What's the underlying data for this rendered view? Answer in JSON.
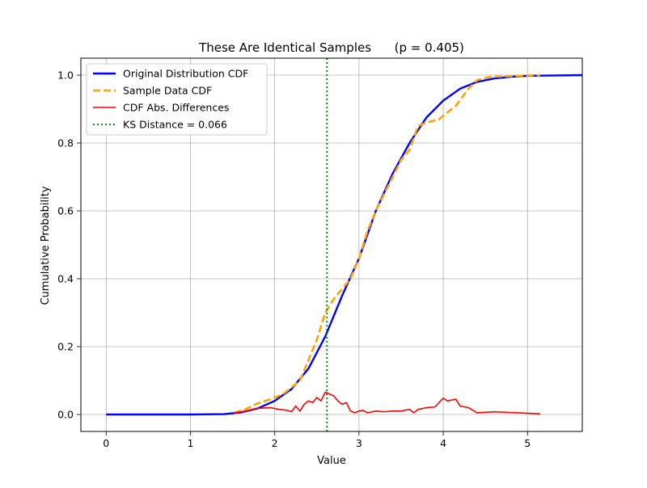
{
  "chart_data": {
    "type": "line",
    "title": "These Are Identical Samples      (p = 0.405)",
    "xlabel": "Value",
    "ylabel": "Cumulative Probability",
    "xlim": [
      -0.3,
      5.65
    ],
    "ylim": [
      -0.05,
      1.05
    ],
    "grid": true,
    "legend_position": "top-left",
    "x_ticks": [
      0,
      1,
      2,
      3,
      4,
      5
    ],
    "x_tick_labels": [
      "0",
      "1",
      "2",
      "3",
      "4",
      "5"
    ],
    "y_ticks": [
      0.0,
      0.2,
      0.4,
      0.6,
      0.8,
      1.0
    ],
    "y_tick_labels": [
      "0.0",
      "0.2",
      "0.4",
      "0.6",
      "0.8",
      "1.0"
    ],
    "series": [
      {
        "name": "Original Distribution CDF",
        "style": "solid",
        "color": "#0000ff",
        "points": [
          [
            0,
            0
          ],
          [
            0.5,
            0
          ],
          [
            1.0,
            0
          ],
          [
            1.4,
            0.001
          ],
          [
            1.6,
            0.006
          ],
          [
            1.8,
            0.018
          ],
          [
            2.0,
            0.04
          ],
          [
            2.2,
            0.075
          ],
          [
            2.4,
            0.135
          ],
          [
            2.6,
            0.23
          ],
          [
            2.8,
            0.35
          ],
          [
            3.0,
            0.46
          ],
          [
            3.2,
            0.6
          ],
          [
            3.4,
            0.71
          ],
          [
            3.6,
            0.8
          ],
          [
            3.8,
            0.875
          ],
          [
            4.0,
            0.925
          ],
          [
            4.2,
            0.96
          ],
          [
            4.4,
            0.98
          ],
          [
            4.6,
            0.99
          ],
          [
            4.8,
            0.995
          ],
          [
            5.0,
            0.998
          ],
          [
            5.3,
            0.999
          ],
          [
            5.65,
            1.0
          ]
        ]
      },
      {
        "name": "Sample Data CDF",
        "style": "dashed",
        "color": "#ffa500",
        "points": [
          [
            1.52,
            0.005
          ],
          [
            1.65,
            0.015
          ],
          [
            1.8,
            0.033
          ],
          [
            1.95,
            0.045
          ],
          [
            2.1,
            0.06
          ],
          [
            2.2,
            0.08
          ],
          [
            2.3,
            0.1
          ],
          [
            2.4,
            0.16
          ],
          [
            2.5,
            0.22
          ],
          [
            2.6,
            0.3
          ],
          [
            2.7,
            0.34
          ],
          [
            2.8,
            0.37
          ],
          [
            2.9,
            0.4
          ],
          [
            3.0,
            0.46
          ],
          [
            3.1,
            0.54
          ],
          [
            3.2,
            0.6
          ],
          [
            3.3,
            0.65
          ],
          [
            3.4,
            0.7
          ],
          [
            3.5,
            0.75
          ],
          [
            3.6,
            0.78
          ],
          [
            3.7,
            0.85
          ],
          [
            3.8,
            0.86
          ],
          [
            3.95,
            0.87
          ],
          [
            4.05,
            0.89
          ],
          [
            4.15,
            0.91
          ],
          [
            4.3,
            0.96
          ],
          [
            4.4,
            0.985
          ],
          [
            4.55,
            0.995
          ],
          [
            4.8,
            0.997
          ],
          [
            5.15,
            1.0
          ]
        ]
      },
      {
        "name": "CDF Abs. Differences",
        "style": "solid",
        "color": "#ff0000",
        "points": [
          [
            1.52,
            0.005
          ],
          [
            1.65,
            0.01
          ],
          [
            1.8,
            0.018
          ],
          [
            1.95,
            0.02
          ],
          [
            2.05,
            0.015
          ],
          [
            2.15,
            0.012
          ],
          [
            2.2,
            0.008
          ],
          [
            2.25,
            0.025
          ],
          [
            2.3,
            0.01
          ],
          [
            2.35,
            0.03
          ],
          [
            2.4,
            0.04
          ],
          [
            2.45,
            0.035
          ],
          [
            2.5,
            0.05
          ],
          [
            2.55,
            0.04
          ],
          [
            2.6,
            0.066
          ],
          [
            2.65,
            0.06
          ],
          [
            2.7,
            0.055
          ],
          [
            2.75,
            0.04
          ],
          [
            2.8,
            0.03
          ],
          [
            2.85,
            0.035
          ],
          [
            2.9,
            0.01
          ],
          [
            2.95,
            0.005
          ],
          [
            3.0,
            0.01
          ],
          [
            3.05,
            0.012
          ],
          [
            3.1,
            0.005
          ],
          [
            3.2,
            0.01
          ],
          [
            3.3,
            0.008
          ],
          [
            3.4,
            0.01
          ],
          [
            3.5,
            0.01
          ],
          [
            3.6,
            0.015
          ],
          [
            3.65,
            0.005
          ],
          [
            3.7,
            0.015
          ],
          [
            3.8,
            0.02
          ],
          [
            3.9,
            0.022
          ],
          [
            4.0,
            0.048
          ],
          [
            4.05,
            0.04
          ],
          [
            4.15,
            0.045
          ],
          [
            4.2,
            0.025
          ],
          [
            4.3,
            0.02
          ],
          [
            4.4,
            0.005
          ],
          [
            4.6,
            0.008
          ],
          [
            5.15,
            0.002
          ]
        ]
      },
      {
        "name": "KS Distance = 0.066",
        "style": "dotted",
        "color": "#008000",
        "x": 2.62
      }
    ]
  }
}
